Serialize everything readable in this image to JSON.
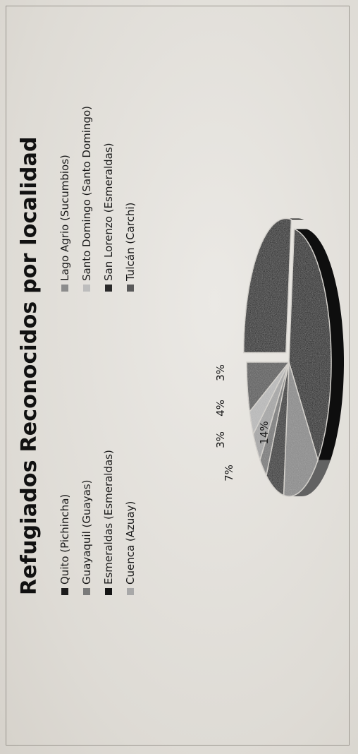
{
  "chart_data": {
    "type": "pie",
    "title": "Refugiados Reconocidos por localidad",
    "legend_position": "top",
    "labels": [
      "Quito (Pichincha)",
      "Esmeraldas (Esmeraldas)",
      "Lago Agrio (Sucumbios)",
      "San Lorenzo (Esmeraldas)",
      "Guayaquil (Guayas)",
      "Cuenca (Azuay)",
      "Santo Domingo (Santo Domingo)",
      "Tulcán (Carchi)"
    ],
    "legend_order": [
      0,
      2,
      4,
      6,
      1,
      3,
      5,
      7
    ],
    "values": [
      27,
      36,
      14,
      7,
      3,
      4,
      3,
      6
    ],
    "data_labels": [
      "",
      "",
      "14%",
      "7%",
      "3%",
      "4%",
      "3%",
      ""
    ],
    "colors": [
      "#1c1c1c",
      "#141414",
      "#8c8c8c",
      "#2a2a2a",
      "#7a7a7a",
      "#a8a8a8",
      "#bdbdbd",
      "#5a5a5a"
    ]
  }
}
